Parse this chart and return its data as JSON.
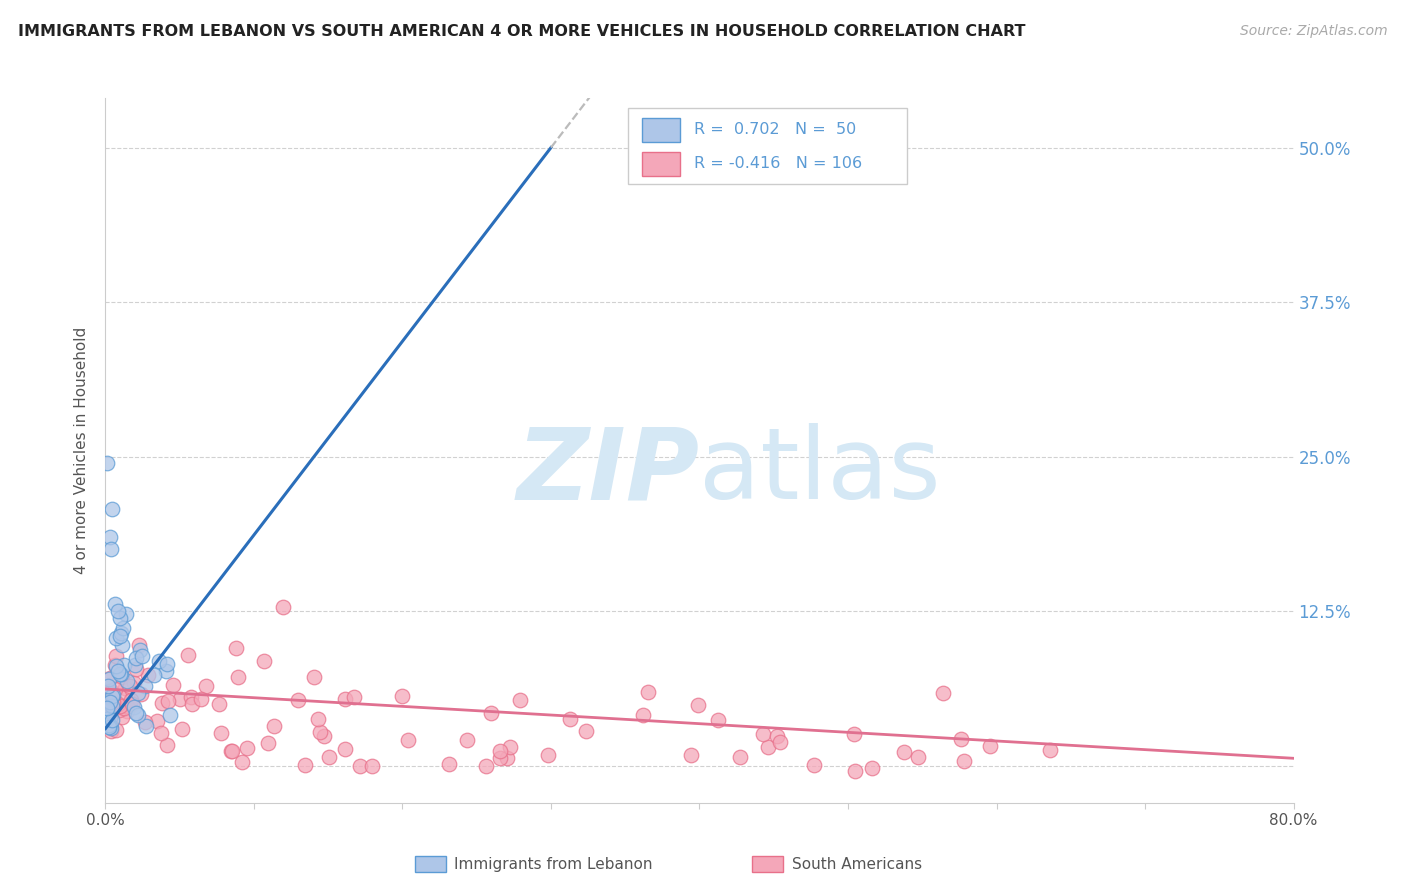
{
  "title": "IMMIGRANTS FROM LEBANON VS SOUTH AMERICAN 4 OR MORE VEHICLES IN HOUSEHOLD CORRELATION CHART",
  "source": "Source: ZipAtlas.com",
  "ylabel": "4 or more Vehicles in Household",
  "xlim": [
    0.0,
    0.8
  ],
  "ylim": [
    -0.03,
    0.54
  ],
  "yticks": [
    0.0,
    0.125,
    0.25,
    0.375,
    0.5
  ],
  "right_ytick_labels": [
    "",
    "12.5%",
    "25.0%",
    "37.5%",
    "50.0%"
  ],
  "xtick_labels": [
    "0.0%",
    "",
    "",
    "",
    "",
    "",
    "",
    "",
    "80.0%"
  ],
  "blue_R": 0.702,
  "blue_N": 50,
  "pink_R": -0.416,
  "pink_N": 106,
  "blue_fill": "#aec6e8",
  "blue_edge": "#5b9bd5",
  "pink_fill": "#f4a7b9",
  "pink_edge": "#e8708a",
  "blue_line_color": "#2a6eba",
  "pink_line_color": "#e07090",
  "dash_line_color": "#bbbbbb",
  "watermark_color": "#d5e8f5",
  "background_color": "#ffffff",
  "grid_color": "#cccccc",
  "title_color": "#222222",
  "right_axis_color": "#5b9bd5",
  "legend_label_color": "#5b9bd5",
  "source_color": "#aaaaaa"
}
